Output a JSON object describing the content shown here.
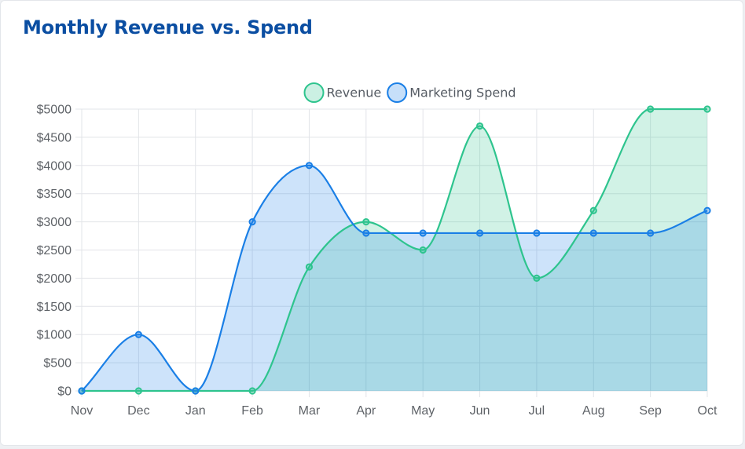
{
  "card": {
    "title": "Monthly Revenue vs. Spend"
  },
  "chart_data": {
    "type": "area",
    "categories": [
      "Nov",
      "Dec",
      "Jan",
      "Feb",
      "Mar",
      "Apr",
      "May",
      "Jun",
      "Jul",
      "Aug",
      "Sep",
      "Oct"
    ],
    "series": [
      {
        "name": "Revenue",
        "values": [
          0,
          0,
          0,
          0,
          2200,
          3000,
          2500,
          4700,
          2000,
          3200,
          5000,
          5000
        ],
        "color": "#2ec48e",
        "fill": "rgba(46,196,142,0.22)"
      },
      {
        "name": "Marketing Spend",
        "values": [
          0,
          1000,
          0,
          3000,
          4000,
          2800,
          2800,
          2800,
          2800,
          2800,
          2800,
          3200
        ],
        "color": "#1a7fe6",
        "fill": "rgba(26,127,230,0.22)"
      }
    ],
    "ylim": [
      0,
      5000
    ],
    "yticks": [
      {
        "value": 0,
        "label": "$0"
      },
      {
        "value": 500,
        "label": "$500"
      },
      {
        "value": 1000,
        "label": "$1000"
      },
      {
        "value": 1500,
        "label": "$1500"
      },
      {
        "value": 2000,
        "label": "$2000"
      },
      {
        "value": 2500,
        "label": "$2500"
      },
      {
        "value": 3000,
        "label": "$3000"
      },
      {
        "value": 3500,
        "label": "$3500"
      },
      {
        "value": 4000,
        "label": "$4000"
      },
      {
        "value": 4500,
        "label": "$4500"
      },
      {
        "value": 5000,
        "label": "$5000"
      }
    ],
    "grid": true,
    "legend_position": "top-center",
    "smooth": true
  }
}
